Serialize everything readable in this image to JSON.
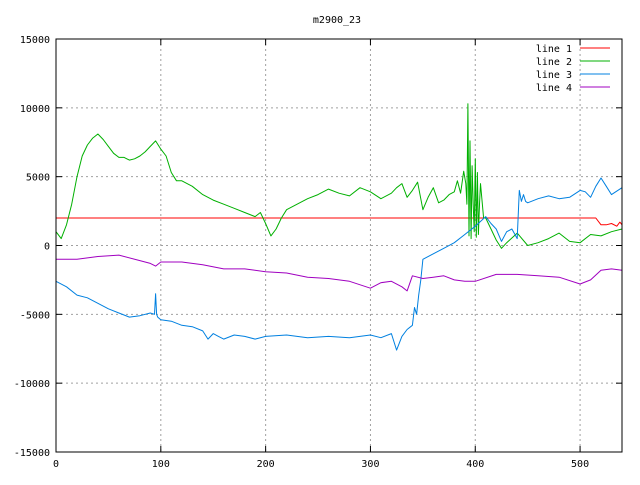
{
  "chart_data": {
    "type": "line",
    "title": "m2900_23",
    "xlabel": "",
    "ylabel": "",
    "xlim": [
      0,
      540
    ],
    "ylim": [
      -15000,
      15000
    ],
    "xticks": [
      0,
      100,
      200,
      300,
      400,
      500
    ],
    "yticks": [
      -15000,
      -10000,
      -5000,
      0,
      5000,
      10000,
      15000
    ],
    "grid": true,
    "legend_position": "top-right",
    "series": [
      {
        "name": "line 1",
        "color": "#ff0000",
        "x": [
          0,
          515,
          520,
          525,
          530,
          535,
          538,
          540
        ],
        "y": [
          2000,
          2000,
          1500,
          1500,
          1600,
          1400,
          1700,
          1500
        ]
      },
      {
        "name": "line 2",
        "color": "#00b000",
        "x": [
          0,
          5,
          10,
          15,
          20,
          25,
          30,
          35,
          40,
          45,
          50,
          55,
          60,
          65,
          70,
          75,
          80,
          85,
          90,
          95,
          100,
          105,
          110,
          115,
          120,
          130,
          140,
          150,
          160,
          170,
          180,
          190,
          195,
          200,
          205,
          210,
          215,
          220,
          230,
          240,
          250,
          260,
          270,
          280,
          290,
          300,
          310,
          320,
          325,
          330,
          335,
          340,
          345,
          350,
          355,
          360,
          365,
          370,
          375,
          380,
          383,
          386,
          389,
          391,
          392,
          393,
          394,
          395,
          396,
          397,
          398,
          399,
          400,
          401,
          402,
          403,
          404,
          405,
          408,
          410,
          415,
          420,
          425,
          430,
          440,
          450,
          460,
          470,
          480,
          490,
          500,
          510,
          520,
          530,
          540
        ],
        "y": [
          1000,
          500,
          1500,
          3000,
          5000,
          6500,
          7300,
          7800,
          8100,
          7700,
          7200,
          6700,
          6400,
          6400,
          6200,
          6300,
          6500,
          6800,
          7200,
          7600,
          7000,
          6500,
          5300,
          4700,
          4700,
          4300,
          3700,
          3300,
          3000,
          2700,
          2400,
          2100,
          2400,
          1600,
          700,
          1200,
          2000,
          2600,
          3000,
          3400,
          3700,
          4100,
          3800,
          3600,
          4200,
          3900,
          3400,
          3800,
          4200,
          4500,
          3500,
          4000,
          4600,
          2600,
          3500,
          4200,
          3100,
          3300,
          3700,
          3900,
          4700,
          3800,
          5400,
          4500,
          3000,
          10300,
          700,
          7600,
          500,
          5800,
          3000,
          1000,
          6300,
          600,
          5300,
          800,
          3000,
          4500,
          2000,
          2000,
          1200,
          400,
          -200,
          200,
          900,
          0,
          200,
          500,
          900,
          300,
          200,
          800,
          700,
          1000,
          1200
        ]
      },
      {
        "name": "line 3",
        "color": "#0080e0",
        "x": [
          0,
          10,
          20,
          30,
          40,
          50,
          60,
          70,
          80,
          90,
          94,
          95,
          96,
          97,
          100,
          110,
          120,
          130,
          140,
          145,
          150,
          155,
          160,
          170,
          180,
          190,
          200,
          220,
          240,
          260,
          280,
          300,
          310,
          320,
          325,
          330,
          335,
          340,
          342,
          344,
          346,
          348,
          350,
          360,
          370,
          380,
          390,
          400,
          410,
          415,
          420,
          425,
          430,
          435,
          440,
          442,
          444,
          446,
          448,
          450,
          460,
          470,
          480,
          490,
          500,
          505,
          510,
          515,
          520,
          525,
          530,
          540
        ],
        "y": [
          -2600,
          -3000,
          -3600,
          -3800,
          -4200,
          -4600,
          -4900,
          -5200,
          -5100,
          -4900,
          -5000,
          -3500,
          -5000,
          -5200,
          -5400,
          -5500,
          -5800,
          -5900,
          -6200,
          -6800,
          -6400,
          -6600,
          -6800,
          -6500,
          -6600,
          -6800,
          -6600,
          -6500,
          -6700,
          -6600,
          -6700,
          -6500,
          -6700,
          -6400,
          -7600,
          -6600,
          -6100,
          -5800,
          -4500,
          -5000,
          -3600,
          -2500,
          -1000,
          -600,
          -200,
          200,
          800,
          1400,
          2100,
          1600,
          1200,
          300,
          1000,
          1200,
          500,
          4000,
          3200,
          3700,
          3200,
          3100,
          3400,
          3600,
          3400,
          3500,
          4000,
          3900,
          3500,
          4300,
          4900,
          4300,
          3700,
          4200
        ]
      },
      {
        "name": "line 4",
        "color": "#a000c0",
        "x": [
          0,
          20,
          40,
          60,
          80,
          90,
          95,
          100,
          120,
          140,
          160,
          180,
          200,
          220,
          240,
          260,
          280,
          300,
          310,
          320,
          330,
          335,
          340,
          350,
          360,
          370,
          380,
          390,
          400,
          420,
          440,
          460,
          480,
          500,
          510,
          520,
          530,
          540
        ],
        "y": [
          -1000,
          -1000,
          -800,
          -700,
          -1100,
          -1300,
          -1500,
          -1200,
          -1200,
          -1400,
          -1700,
          -1700,
          -1900,
          -2000,
          -2300,
          -2400,
          -2600,
          -3100,
          -2700,
          -2600,
          -3000,
          -3300,
          -2200,
          -2400,
          -2300,
          -2200,
          -2500,
          -2600,
          -2600,
          -2100,
          -2100,
          -2200,
          -2300,
          -2800,
          -2500,
          -1800,
          -1700,
          -1800
        ]
      }
    ]
  }
}
